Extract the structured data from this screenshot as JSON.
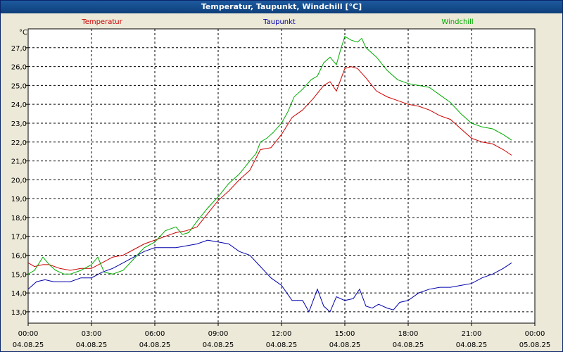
{
  "window": {
    "title": "Temperatur, Taupunkt, Windchill [°C]"
  },
  "chart_data": {
    "type": "line",
    "title": "Temperatur, Taupunkt, Windchill [°C]",
    "y_unit": "°C",
    "ylim": [
      12.4,
      28.0
    ],
    "yticks": [
      "13,0",
      "14,0",
      "15,0",
      "16,0",
      "17,0",
      "18,0",
      "19,0",
      "20,0",
      "21,0",
      "22,0",
      "23,0",
      "24,0",
      "25,0",
      "26,0",
      "27,0"
    ],
    "xlim_hours": [
      0,
      24
    ],
    "xticks": [
      {
        "time": "00:00",
        "date": "04.08.25"
      },
      {
        "time": "03:00",
        "date": "04.08.25"
      },
      {
        "time": "06:00",
        "date": "04.08.25"
      },
      {
        "time": "09:00",
        "date": "04.08.25"
      },
      {
        "time": "12:00",
        "date": "04.08.25"
      },
      {
        "time": "15:00",
        "date": "04.08.25"
      },
      {
        "time": "18:00",
        "date": "04.08.25"
      },
      {
        "time": "21:00",
        "date": "04.08.25"
      },
      {
        "time": "00:00",
        "date": "05.08.25"
      }
    ],
    "grid": true,
    "legend_position": "top",
    "series": [
      {
        "name": "Temperatur",
        "color": "#cc0000",
        "points": [
          [
            0,
            15.6
          ],
          [
            0.3,
            15.4
          ],
          [
            0.7,
            15.5
          ],
          [
            1.0,
            15.5
          ],
          [
            1.5,
            15.3
          ],
          [
            2.0,
            15.2
          ],
          [
            2.5,
            15.3
          ],
          [
            3.0,
            15.3
          ],
          [
            3.5,
            15.6
          ],
          [
            4.0,
            15.9
          ],
          [
            4.5,
            16.0
          ],
          [
            5.0,
            16.3
          ],
          [
            5.5,
            16.6
          ],
          [
            6.0,
            16.8
          ],
          [
            6.5,
            17.0
          ],
          [
            7.0,
            17.2
          ],
          [
            7.5,
            17.3
          ],
          [
            8.0,
            17.5
          ],
          [
            8.5,
            18.2
          ],
          [
            9.0,
            18.9
          ],
          [
            9.5,
            19.4
          ],
          [
            10.0,
            20.0
          ],
          [
            10.5,
            20.5
          ],
          [
            11.0,
            21.6
          ],
          [
            11.5,
            21.7
          ],
          [
            12.0,
            22.4
          ],
          [
            12.5,
            23.3
          ],
          [
            13.0,
            23.7
          ],
          [
            13.5,
            24.3
          ],
          [
            14.0,
            25.0
          ],
          [
            14.3,
            25.2
          ],
          [
            14.6,
            24.7
          ],
          [
            15.0,
            25.9
          ],
          [
            15.3,
            26.0
          ],
          [
            15.6,
            25.9
          ],
          [
            16.0,
            25.4
          ],
          [
            16.5,
            24.7
          ],
          [
            17.0,
            24.4
          ],
          [
            17.5,
            24.2
          ],
          [
            18.0,
            24.0
          ],
          [
            18.5,
            23.9
          ],
          [
            19.0,
            23.7
          ],
          [
            19.5,
            23.4
          ],
          [
            20.0,
            23.2
          ],
          [
            20.5,
            22.7
          ],
          [
            21.0,
            22.2
          ],
          [
            21.5,
            22.0
          ],
          [
            22.0,
            21.9
          ],
          [
            22.5,
            21.6
          ],
          [
            22.9,
            21.3
          ]
        ]
      },
      {
        "name": "Taupunkt",
        "color": "#0000aa",
        "points": [
          [
            0,
            14.2
          ],
          [
            0.4,
            14.6
          ],
          [
            0.8,
            14.7
          ],
          [
            1.2,
            14.6
          ],
          [
            1.6,
            14.6
          ],
          [
            2.0,
            14.6
          ],
          [
            2.5,
            14.8
          ],
          [
            3.0,
            14.8
          ],
          [
            3.5,
            15.1
          ],
          [
            4.0,
            15.3
          ],
          [
            4.5,
            15.6
          ],
          [
            5.0,
            15.9
          ],
          [
            5.5,
            16.2
          ],
          [
            6.0,
            16.4
          ],
          [
            6.5,
            16.4
          ],
          [
            7.0,
            16.4
          ],
          [
            7.5,
            16.5
          ],
          [
            8.0,
            16.6
          ],
          [
            8.5,
            16.8
          ],
          [
            9.0,
            16.7
          ],
          [
            9.5,
            16.6
          ],
          [
            10.0,
            16.2
          ],
          [
            10.5,
            16.0
          ],
          [
            11.0,
            15.4
          ],
          [
            11.5,
            14.8
          ],
          [
            12.0,
            14.4
          ],
          [
            12.5,
            13.6
          ],
          [
            13.0,
            13.6
          ],
          [
            13.3,
            13.0
          ],
          [
            13.7,
            14.2
          ],
          [
            14.0,
            13.3
          ],
          [
            14.3,
            13.0
          ],
          [
            14.6,
            13.8
          ],
          [
            15.0,
            13.6
          ],
          [
            15.4,
            13.7
          ],
          [
            15.7,
            14.2
          ],
          [
            16.0,
            13.3
          ],
          [
            16.3,
            13.2
          ],
          [
            16.6,
            13.4
          ],
          [
            17.0,
            13.2
          ],
          [
            17.3,
            13.1
          ],
          [
            17.6,
            13.5
          ],
          [
            18.0,
            13.6
          ],
          [
            18.5,
            14.0
          ],
          [
            19.0,
            14.2
          ],
          [
            19.5,
            14.3
          ],
          [
            20.0,
            14.3
          ],
          [
            20.5,
            14.4
          ],
          [
            21.0,
            14.5
          ],
          [
            21.5,
            14.8
          ],
          [
            22.0,
            15.0
          ],
          [
            22.5,
            15.3
          ],
          [
            22.9,
            15.6
          ]
        ]
      },
      {
        "name": "Windchill",
        "color": "#00aa00",
        "points": [
          [
            0,
            15.0
          ],
          [
            0.3,
            15.2
          ],
          [
            0.7,
            15.9
          ],
          [
            1.0,
            15.5
          ],
          [
            1.3,
            15.2
          ],
          [
            1.7,
            15.0
          ],
          [
            2.0,
            15.0
          ],
          [
            2.5,
            15.2
          ],
          [
            3.0,
            15.5
          ],
          [
            3.3,
            15.9
          ],
          [
            3.6,
            15.1
          ],
          [
            4.0,
            15.0
          ],
          [
            4.5,
            15.2
          ],
          [
            5.0,
            15.8
          ],
          [
            5.5,
            16.4
          ],
          [
            6.0,
            16.7
          ],
          [
            6.5,
            17.3
          ],
          [
            7.0,
            17.5
          ],
          [
            7.3,
            17.1
          ],
          [
            7.6,
            17.2
          ],
          [
            8.0,
            17.8
          ],
          [
            8.5,
            18.5
          ],
          [
            9.0,
            19.1
          ],
          [
            9.5,
            19.8
          ],
          [
            10.0,
            20.3
          ],
          [
            10.5,
            21.0
          ],
          [
            10.8,
            21.4
          ],
          [
            11.0,
            22.0
          ],
          [
            11.3,
            22.2
          ],
          [
            11.6,
            22.5
          ],
          [
            12.0,
            23.0
          ],
          [
            12.3,
            23.6
          ],
          [
            12.6,
            24.4
          ],
          [
            13.0,
            24.8
          ],
          [
            13.4,
            25.3
          ],
          [
            13.7,
            25.5
          ],
          [
            14.0,
            26.2
          ],
          [
            14.3,
            26.5
          ],
          [
            14.6,
            26.1
          ],
          [
            14.8,
            26.9
          ],
          [
            15.0,
            27.6
          ],
          [
            15.3,
            27.4
          ],
          [
            15.6,
            27.3
          ],
          [
            15.8,
            27.5
          ],
          [
            16.0,
            27.0
          ],
          [
            16.5,
            26.5
          ],
          [
            17.0,
            25.8
          ],
          [
            17.5,
            25.3
          ],
          [
            18.0,
            25.1
          ],
          [
            18.5,
            25.0
          ],
          [
            19.0,
            24.9
          ],
          [
            19.5,
            24.5
          ],
          [
            20.0,
            24.1
          ],
          [
            20.5,
            23.5
          ],
          [
            21.0,
            23.0
          ],
          [
            21.5,
            22.8
          ],
          [
            22.0,
            22.7
          ],
          [
            22.5,
            22.4
          ],
          [
            22.9,
            22.1
          ]
        ]
      }
    ]
  }
}
